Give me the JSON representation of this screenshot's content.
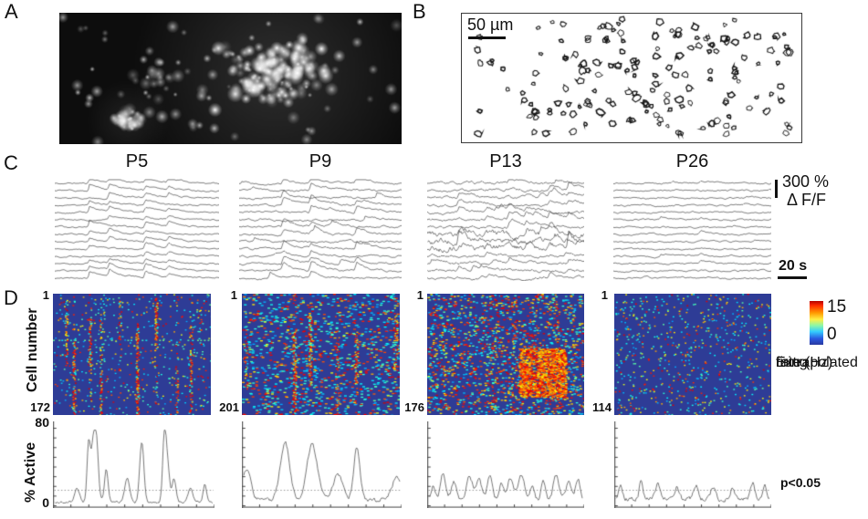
{
  "panel_a": {
    "label": "A"
  },
  "panel_b": {
    "label": "B",
    "scale_label": "50 µm"
  },
  "panel_c": {
    "label": "C",
    "columns": [
      "P5",
      "P9",
      "P13",
      "P26"
    ],
    "scale_value": "300 %",
    "scale_unit": "Δ F/F",
    "time_scale": "20 s"
  },
  "panel_d": {
    "label": "D",
    "y_axis": "Cell number",
    "top_label": "1",
    "counts": [
      "172",
      "201",
      "176",
      "114"
    ],
    "colorbar": {
      "max": "15",
      "min": "0",
      "caption_lines": [
        "Extrapolated",
        "firing",
        "rate (Hz)"
      ]
    }
  },
  "active_row": {
    "y_axis": "% Active",
    "y_max": "80",
    "y_min": "0",
    "significance": "p<0.05"
  },
  "chart_data": [
    {
      "id": "traces-P5",
      "type": "line",
      "subtype": "calcium_traces",
      "age": "P5",
      "n_traces": 14,
      "events_frac": [
        0.21,
        0.33,
        0.55,
        0.69
      ],
      "event_amp": 1.0,
      "noise": 0.55,
      "sync": 0.85,
      "extra_events": 0
    },
    {
      "id": "traces-P9",
      "type": "line",
      "subtype": "calcium_traces",
      "age": "P9",
      "n_traces": 14,
      "events_frac": [
        0.27,
        0.44,
        0.72
      ],
      "event_amp": 1.2,
      "noise": 0.75,
      "sync": 0.7,
      "extra_events": 1
    },
    {
      "id": "traces-P13",
      "type": "line",
      "subtype": "calcium_traces",
      "age": "P13",
      "n_traces": 14,
      "events_frac": [
        0.2,
        0.38,
        0.52,
        0.63,
        0.78,
        0.9
      ],
      "event_amp": 0.9,
      "noise": 1.0,
      "sync": 0.45,
      "extra_events": 2,
      "wild_rows": [
        7,
        8,
        9
      ]
    },
    {
      "id": "traces-P26",
      "type": "line",
      "subtype": "calcium_traces",
      "age": "P26",
      "n_traces": 14,
      "events_frac": [
        0.3,
        0.55,
        0.8
      ],
      "event_amp": 0.45,
      "noise": 0.6,
      "sync": 0.25,
      "extra_events": 1
    },
    {
      "id": "heatmap-P5",
      "type": "heatmap",
      "age": "P5",
      "rows": 172,
      "row_range": [
        1,
        172
      ],
      "zmin": 0,
      "zmax": 15,
      "zlabel": "Extrapolated firing rate (Hz)",
      "colormap": "jet",
      "speckle_density": 0.05,
      "dash_w": 1.8,
      "color_mix": [
        0.6,
        0.2,
        0.2
      ],
      "bands": [
        [
          0.08,
          0.6
        ],
        [
          0.13,
          0.85
        ],
        [
          0.23,
          0.9
        ],
        [
          0.3,
          0.5
        ],
        [
          0.42,
          0.45
        ],
        [
          0.53,
          0.85
        ],
        [
          0.65,
          0.9
        ],
        [
          0.78,
          0.4
        ],
        [
          0.87,
          0.55
        ],
        [
          0.93,
          0.35
        ]
      ],
      "band_jitter": 3,
      "active_row_frac": 0.38
    },
    {
      "id": "heatmap-P9",
      "type": "heatmap",
      "age": "P9",
      "rows": 201,
      "row_range": [
        1,
        201
      ],
      "zmin": 0,
      "zmax": 15,
      "zlabel": "Extrapolated firing rate (Hz)",
      "colormap": "jet",
      "speckle_density": 0.1,
      "dash_w": 3,
      "color_mix": [
        0.55,
        0.15,
        0.3
      ],
      "bands": [
        [
          0.02,
          0.4
        ],
        [
          0.33,
          0.85
        ],
        [
          0.43,
          0.9
        ],
        [
          0.6,
          0.45
        ],
        [
          0.72,
          0.9
        ],
        [
          0.97,
          0.6
        ]
      ],
      "band_jitter": 4
    },
    {
      "id": "heatmap-P13",
      "type": "heatmap",
      "age": "P13",
      "rows": 176,
      "row_range": [
        1,
        176
      ],
      "zmin": 0,
      "zmax": 15,
      "zlabel": "Extrapolated firing rate (Hz)",
      "colormap": "jet",
      "speckle_density": 0.16,
      "dash_w": 2.6,
      "color_mix": [
        0.45,
        0.2,
        0.35
      ],
      "bands": [
        [
          0.1,
          0.3
        ],
        [
          0.25,
          0.35
        ],
        [
          0.42,
          0.35
        ],
        [
          0.55,
          0.3
        ],
        [
          0.68,
          0.35
        ],
        [
          0.82,
          0.3
        ]
      ],
      "band_jitter": 6,
      "hot_region": {
        "x0": 0.58,
        "x1": 0.88,
        "y0": 0.45,
        "y1": 0.85,
        "density": 0.045
      }
    },
    {
      "id": "heatmap-P26",
      "type": "heatmap",
      "age": "P26",
      "rows": 114,
      "row_range": [
        1,
        114
      ],
      "zmin": 0,
      "zmax": 15,
      "zlabel": "Extrapolated firing rate (Hz)",
      "colormap": "jet",
      "speckle_density": 0.11,
      "dash_w": 1.8,
      "color_mix": [
        0.55,
        0.25,
        0.2
      ],
      "bands": [],
      "band_jitter": 3
    },
    {
      "id": "active-P5",
      "type": "line",
      "age": "P5",
      "ylabel": "% Active",
      "ylim": [
        0,
        80
      ],
      "threshold": 16,
      "noise_base": 4,
      "peak_w": 2.2,
      "peaks_x": [
        0.15,
        0.22,
        0.25,
        0.27,
        0.33,
        0.46,
        0.55,
        0.69,
        0.71,
        0.75,
        0.85,
        0.94
      ],
      "peaks_h": [
        14,
        52,
        58,
        44,
        34,
        26,
        63,
        70,
        37,
        24,
        14,
        19
      ]
    },
    {
      "id": "active-P9",
      "type": "line",
      "age": "P9",
      "ylabel": "% Active",
      "ylim": [
        0,
        80
      ],
      "threshold": 16,
      "noise_base": 7,
      "peak_w": 4.5,
      "peaks_x": [
        0.03,
        0.27,
        0.44,
        0.6,
        0.72,
        0.97
      ],
      "peaks_h": [
        30,
        60,
        57,
        26,
        54,
        24
      ]
    },
    {
      "id": "active-P13",
      "type": "line",
      "age": "P13",
      "ylabel": "% Active",
      "ylim": [
        0,
        80
      ],
      "threshold": 16,
      "noise_base": 7,
      "peak_w": 2.6,
      "peaks_x": [
        0.04,
        0.1,
        0.17,
        0.27,
        0.33,
        0.4,
        0.47,
        0.53,
        0.6,
        0.67,
        0.74,
        0.82,
        0.9,
        0.96
      ],
      "peaks_h": [
        14,
        27,
        18,
        24,
        20,
        26,
        17,
        22,
        25,
        15,
        21,
        26,
        18,
        22
      ]
    },
    {
      "id": "active-P26",
      "type": "line",
      "age": "P26",
      "ylabel": "% Active",
      "ylim": [
        0,
        80
      ],
      "threshold": 16,
      "noise_base": 8,
      "peak_w": 2.2,
      "peaks_x": [
        0.04,
        0.17,
        0.28,
        0.4,
        0.52,
        0.63,
        0.75,
        0.88,
        0.96
      ],
      "peaks_h": [
        16,
        21,
        15,
        13,
        14,
        12,
        11,
        18,
        14
      ]
    }
  ]
}
